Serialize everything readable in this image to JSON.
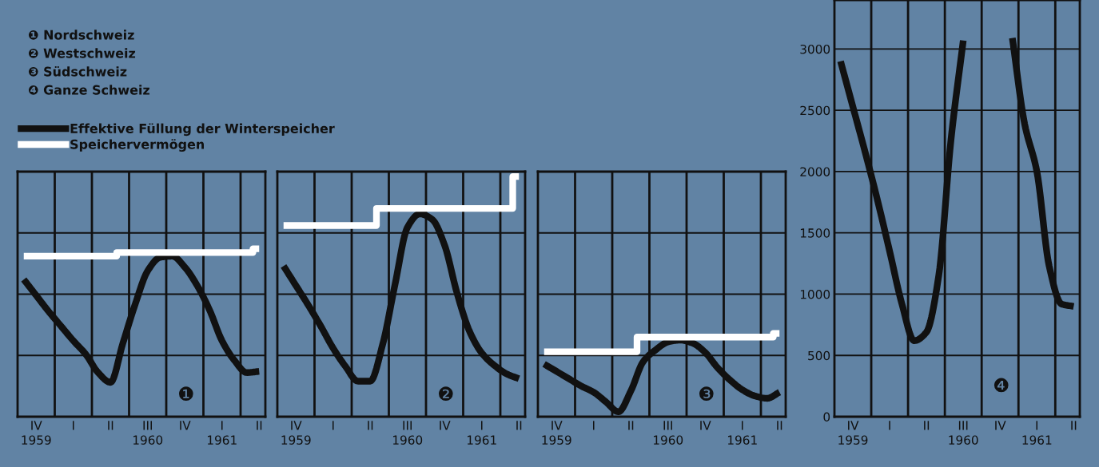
{
  "chart_data": [
    {
      "type": "line",
      "title": "❶",
      "legend": "top",
      "annotations": [
        "❶ Nordschweiz",
        "❷ Westschweiz",
        "❸ Südschweiz",
        "❹ Ganze Schweiz"
      ],
      "categories": [
        null,
        "IV\n1959",
        null,
        null,
        "I",
        null,
        null,
        "II",
        null,
        null,
        "III\n1960",
        null,
        null,
        "IV",
        null,
        null,
        "I\n1961",
        null,
        null,
        "II"
      ],
      "ylim": [
        0,
        2000
      ],
      "yticks": [
        0,
        500,
        1000,
        1500,
        2000
      ],
      "tick_labels": "x",
      "grid": true,
      "series": [
        {
          "name": "Effektive Füllung der Winterspeicher",
          "color": "#111111",
          "values": [
            1120,
            990,
            860,
            740,
            620,
            510,
            360,
            280,
            600,
            920,
            1190,
            1300,
            1310,
            1220,
            1070,
            870,
            620,
            460,
            360,
            370
          ]
        },
        {
          "name": "Speichervermögen",
          "type": "step",
          "color": "#ffffff",
          "values": [
            1310,
            1310,
            1310,
            1310,
            1310,
            1310,
            1310,
            1310,
            1340,
            1340,
            1340,
            1340,
            1340,
            1340,
            1340,
            1340,
            1340,
            1340,
            1340,
            1370
          ]
        }
      ]
    },
    {
      "type": "line",
      "title": "❷",
      "categories": [
        null,
        "IV\n1959",
        null,
        null,
        "I",
        null,
        null,
        "II",
        null,
        null,
        "III\n1960",
        null,
        null,
        "IV",
        null,
        null,
        "I\n1961",
        null,
        null,
        "II"
      ],
      "ylim": [
        0,
        2000
      ],
      "yticks": [
        0,
        500,
        1000,
        1500,
        2000
      ],
      "tick_labels": "x",
      "grid": true,
      "series": [
        {
          "color": "#111111",
          "values": [
            1230,
            1070,
            910,
            740,
            560,
            410,
            290,
            290,
            590,
            1080,
            1545,
            1655,
            1610,
            1400,
            1010,
            700,
            520,
            420,
            350,
            310
          ]
        },
        {
          "type": "step",
          "color": "#ffffff",
          "values": [
            1560,
            1560,
            1560,
            1560,
            1560,
            1560,
            1560,
            1560,
            1700,
            1700,
            1700,
            1700,
            1700,
            1700,
            1700,
            1700,
            1700,
            1700,
            1700,
            1960
          ]
        }
      ]
    },
    {
      "type": "line",
      "title": "❸",
      "categories": [
        null,
        "IV\n1959",
        null,
        null,
        "I",
        null,
        null,
        "II",
        null,
        null,
        "III\n1960",
        null,
        null,
        "IV",
        null,
        null,
        "I\n1961",
        null,
        null,
        "II"
      ],
      "ylim": [
        0,
        2000
      ],
      "yticks": [
        0,
        500,
        1000,
        1500,
        2000
      ],
      "tick_labels": "x",
      "grid": true,
      "series": [
        {
          "color": "#111111",
          "values": [
            430,
            370,
            310,
            250,
            200,
            120,
            40,
            210,
            450,
            545,
            610,
            625,
            600,
            525,
            400,
            300,
            220,
            170,
            150,
            200
          ]
        },
        {
          "type": "step",
          "color": "#ffffff",
          "values": [
            530,
            530,
            530,
            530,
            530,
            530,
            530,
            530,
            650,
            650,
            650,
            650,
            650,
            650,
            650,
            650,
            650,
            650,
            650,
            680
          ]
        }
      ]
    },
    {
      "type": "line",
      "title": "❹",
      "categories": [
        null,
        "IV\n1959",
        null,
        null,
        "I",
        null,
        null,
        "II",
        null,
        null,
        "III\n1960",
        null,
        null,
        "IV",
        null,
        null,
        "I\n1961",
        null,
        null,
        "II"
      ],
      "ylim": [
        0,
        3400
      ],
      "yticks": [
        0,
        500,
        1000,
        1500,
        2000,
        2500,
        3000
      ],
      "grid": true,
      "series": [
        {
          "color": "#111111",
          "values": [
            2900,
            2530,
            2160,
            1770,
            1350,
            920,
            620,
            690,
            1150,
            2260,
            3070,
            null,
            null,
            null,
            3090,
            2390,
            2000,
            1230,
            920,
            900
          ]
        }
      ]
    }
  ]
}
